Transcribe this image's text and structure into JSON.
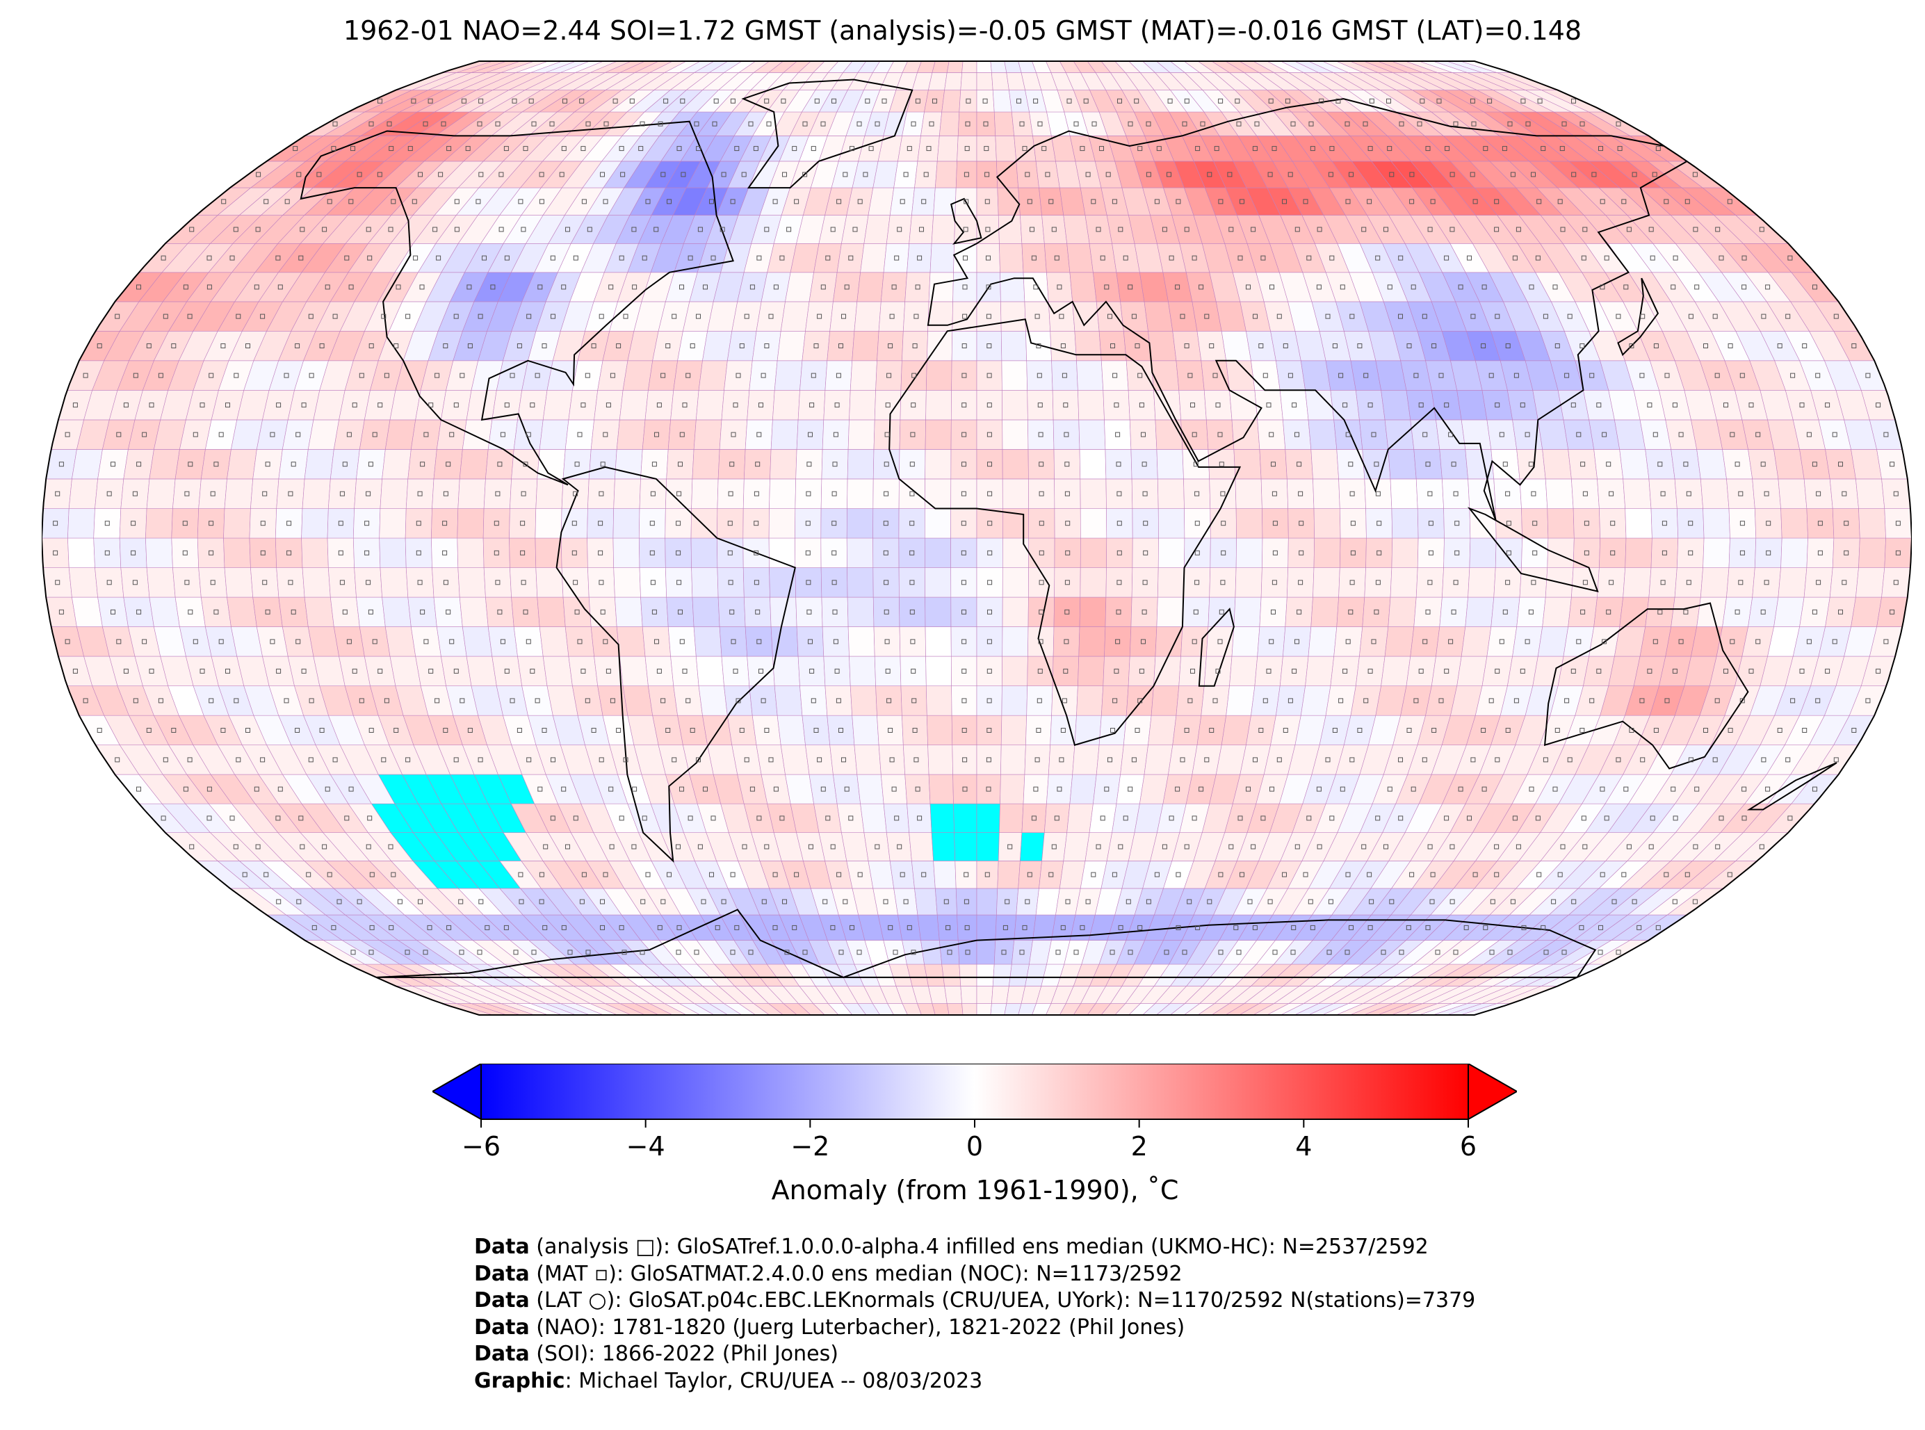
{
  "title": "1962-01 NAO=2.44 SOI=1.72 GMST (analysis)=-0.05 GMST (MAT)=-0.016 GMST (LAT)=0.148",
  "colorbar": {
    "label": "Anomaly (from 1961-1990), ˚C",
    "min": -6,
    "max": 6,
    "ticks": [
      "−6",
      "−4",
      "−2",
      "0",
      "2",
      "4",
      "6"
    ],
    "tick_values": [
      -6,
      -4,
      -2,
      0,
      2,
      4,
      6
    ],
    "extend": "both",
    "colormap": "bwr",
    "colors": {
      "low": "#0000ff",
      "mid": "#ffffff",
      "high": "#ff0000"
    }
  },
  "map": {
    "projection": "Robinson",
    "grid": "5x5 degree cells",
    "cell_outline_color": "#c080c0",
    "missing_color": "#00ffff",
    "coastline_color": "#000000"
  },
  "credits": [
    {
      "label": "Data",
      "text": " (analysis □): GloSATref.1.0.0.0-alpha.4 infilled ens median (UKMO-HC): N=2537/2592"
    },
    {
      "label": "Data",
      "text": " (MAT ▫): GloSATMAT.2.4.0.0 ens median (NOC): N=1173/2592"
    },
    {
      "label": "Data",
      "text": " (LAT ○): GloSAT.p04c.EBC.LEKnormals (CRU/UEA, UYork): N=1170/2592 N(stations)=7379"
    },
    {
      "label": "Data",
      "text": " (NAO): 1781-1820 (Juerg Luterbacher), 1821-2022 (Phil Jones)"
    },
    {
      "label": "Data",
      "text": " (SOI): 1866-2022 (Phil Jones)"
    },
    {
      "label": "Graphic",
      "text": ": Michael Taylor, CRU/UEA -- 08/03/2023"
    }
  ]
}
